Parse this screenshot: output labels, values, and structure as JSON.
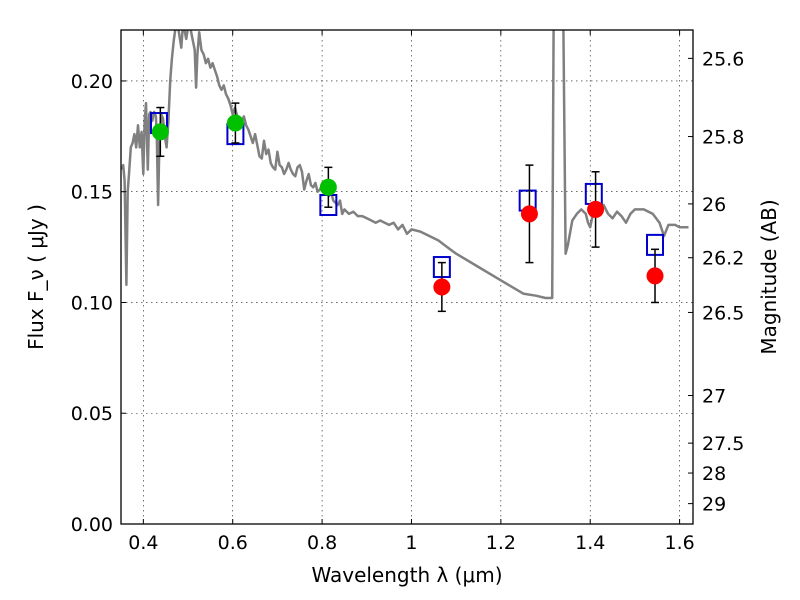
{
  "chart_data": {
    "type": "scatter",
    "xlabel": "Wavelength  λ (μm)",
    "ylabel": "Flux  F_ν  ( μJy )",
    "y2label": "Magnitude (AB)",
    "xlim": [
      0.35,
      1.63
    ],
    "ylim": [
      0.0,
      0.223
    ],
    "grid": true,
    "x_ticks": [
      {
        "value": 0.4,
        "label": "0.4"
      },
      {
        "value": 0.6,
        "label": "0.6"
      },
      {
        "value": 0.8,
        "label": "0.8"
      },
      {
        "value": 1.0,
        "label": "1"
      },
      {
        "value": 1.2,
        "label": "1.2"
      },
      {
        "value": 1.4,
        "label": "1.4"
      },
      {
        "value": 1.6,
        "label": "1.6"
      }
    ],
    "y_ticks": [
      {
        "value": 0.0,
        "label": "0.00"
      },
      {
        "value": 0.05,
        "label": "0.05"
      },
      {
        "value": 0.1,
        "label": "0.10"
      },
      {
        "value": 0.15,
        "label": "0.15"
      },
      {
        "value": 0.2,
        "label": "0.20"
      }
    ],
    "y2_ticks": [
      {
        "flux": 0.2102,
        "label": "25.6"
      },
      {
        "flux": 0.1749,
        "label": "25.8"
      },
      {
        "flux": 0.1445,
        "label": "26"
      },
      {
        "flux": 0.1202,
        "label": "26.2"
      },
      {
        "flux": 0.0955,
        "label": "26.5"
      },
      {
        "flux": 0.058,
        "label": "27"
      },
      {
        "flux": 0.0365,
        "label": "27.5"
      },
      {
        "flux": 0.023,
        "label": "28"
      },
      {
        "flux": 0.0092,
        "label": "29"
      }
    ],
    "template_spectrum": {
      "color": "#808080",
      "points": [
        [
          0.352,
          0.16
        ],
        [
          0.355,
          0.162
        ],
        [
          0.358,
          0.155
        ],
        [
          0.362,
          0.108
        ],
        [
          0.365,
          0.15
        ],
        [
          0.368,
          0.158
        ],
        [
          0.372,
          0.17
        ],
        [
          0.376,
          0.172
        ],
        [
          0.38,
          0.176
        ],
        [
          0.384,
          0.17
        ],
        [
          0.388,
          0.18
        ],
        [
          0.392,
          0.17
        ],
        [
          0.396,
          0.177
        ],
        [
          0.4,
          0.158
        ],
        [
          0.403,
          0.182
        ],
        [
          0.406,
          0.19
        ],
        [
          0.41,
          0.16
        ],
        [
          0.413,
          0.185
        ],
        [
          0.416,
          0.186
        ],
        [
          0.42,
          0.182
        ],
        [
          0.424,
          0.186
        ],
        [
          0.428,
          0.184
        ],
        [
          0.43,
          0.175
        ],
        [
          0.433,
          0.144
        ],
        [
          0.436,
          0.172
        ],
        [
          0.44,
          0.185
        ],
        [
          0.444,
          0.183
        ],
        [
          0.448,
          0.175
        ],
        [
          0.452,
          0.17
        ],
        [
          0.456,
          0.182
        ],
        [
          0.46,
          0.2
        ],
        [
          0.464,
          0.21
        ],
        [
          0.468,
          0.218
        ],
        [
          0.472,
          0.224
        ],
        [
          0.478,
          0.224
        ],
        [
          0.485,
          0.215
        ],
        [
          0.488,
          0.224
        ],
        [
          0.492,
          0.223
        ],
        [
          0.496,
          0.219
        ],
        [
          0.5,
          0.224
        ],
        [
          0.505,
          0.224
        ],
        [
          0.51,
          0.219
        ],
        [
          0.515,
          0.214
        ],
        [
          0.518,
          0.197
        ],
        [
          0.521,
          0.212
        ],
        [
          0.525,
          0.222
        ],
        [
          0.53,
          0.214
        ],
        [
          0.535,
          0.212
        ],
        [
          0.54,
          0.208
        ],
        [
          0.545,
          0.21
        ],
        [
          0.55,
          0.206
        ],
        [
          0.555,
          0.208
        ],
        [
          0.56,
          0.205
        ],
        [
          0.565,
          0.202
        ],
        [
          0.57,
          0.198
        ],
        [
          0.575,
          0.196
        ],
        [
          0.58,
          0.198
        ],
        [
          0.585,
          0.194
        ],
        [
          0.59,
          0.192
        ],
        [
          0.595,
          0.189
        ],
        [
          0.6,
          0.185
        ],
        [
          0.605,
          0.188
        ],
        [
          0.61,
          0.184
        ],
        [
          0.615,
          0.183
        ],
        [
          0.62,
          0.182
        ],
        [
          0.625,
          0.184
        ],
        [
          0.63,
          0.18
        ],
        [
          0.635,
          0.178
        ],
        [
          0.64,
          0.175
        ],
        [
          0.645,
          0.172
        ],
        [
          0.65,
          0.176
        ],
        [
          0.655,
          0.171
        ],
        [
          0.66,
          0.166
        ],
        [
          0.665,
          0.165
        ],
        [
          0.67,
          0.173
        ],
        [
          0.675,
          0.167
        ],
        [
          0.68,
          0.169
        ],
        [
          0.685,
          0.163
        ],
        [
          0.69,
          0.161
        ],
        [
          0.695,
          0.16
        ],
        [
          0.7,
          0.168
        ],
        [
          0.705,
          0.162
        ],
        [
          0.71,
          0.161
        ],
        [
          0.715,
          0.158
        ],
        [
          0.72,
          0.16
        ],
        [
          0.725,
          0.163
        ],
        [
          0.73,
          0.16
        ],
        [
          0.735,
          0.158
        ],
        [
          0.74,
          0.157
        ],
        [
          0.745,
          0.161
        ],
        [
          0.75,
          0.162
        ],
        [
          0.755,
          0.159
        ],
        [
          0.76,
          0.151
        ],
        [
          0.765,
          0.155
        ],
        [
          0.77,
          0.158
        ],
        [
          0.775,
          0.153
        ],
        [
          0.78,
          0.152
        ],
        [
          0.785,
          0.154
        ],
        [
          0.79,
          0.15
        ],
        [
          0.795,
          0.151
        ],
        [
          0.8,
          0.153
        ],
        [
          0.805,
          0.149
        ],
        [
          0.81,
          0.15
        ],
        [
          0.815,
          0.148
        ],
        [
          0.82,
          0.15
        ],
        [
          0.825,
          0.146
        ],
        [
          0.83,
          0.145
        ],
        [
          0.835,
          0.144
        ],
        [
          0.84,
          0.146
        ],
        [
          0.845,
          0.14
        ],
        [
          0.85,
          0.142
        ],
        [
          0.86,
          0.14
        ],
        [
          0.87,
          0.141
        ],
        [
          0.88,
          0.139
        ],
        [
          0.89,
          0.139
        ],
        [
          0.9,
          0.138
        ],
        [
          0.91,
          0.137
        ],
        [
          0.92,
          0.136
        ],
        [
          0.93,
          0.137
        ],
        [
          0.94,
          0.136
        ],
        [
          0.95,
          0.135
        ],
        [
          0.96,
          0.136
        ],
        [
          0.97,
          0.133
        ],
        [
          0.98,
          0.135
        ],
        [
          0.99,
          0.131
        ],
        [
          1.0,
          0.133
        ],
        [
          1.02,
          0.132
        ],
        [
          1.04,
          0.13
        ],
        [
          1.06,
          0.128
        ],
        [
          1.08,
          0.125
        ],
        [
          1.1,
          0.122
        ],
        [
          1.15,
          0.116
        ],
        [
          1.2,
          0.11
        ],
        [
          1.25,
          0.104
        ],
        [
          1.28,
          0.103
        ],
        [
          1.3,
          0.102
        ],
        [
          1.315,
          0.102
        ],
        [
          1.318,
          0.224
        ],
        [
          1.323,
          0.224
        ],
        [
          1.334,
          0.224
        ],
        [
          1.34,
          0.224
        ],
        [
          1.345,
          0.122
        ],
        [
          1.35,
          0.126
        ],
        [
          1.36,
          0.137
        ],
        [
          1.37,
          0.14
        ],
        [
          1.38,
          0.142
        ],
        [
          1.39,
          0.14
        ],
        [
          1.395,
          0.136
        ],
        [
          1.4,
          0.134
        ],
        [
          1.405,
          0.139
        ],
        [
          1.41,
          0.141
        ],
        [
          1.42,
          0.143
        ],
        [
          1.43,
          0.144
        ],
        [
          1.44,
          0.14
        ],
        [
          1.45,
          0.138
        ],
        [
          1.46,
          0.141
        ],
        [
          1.47,
          0.139
        ],
        [
          1.48,
          0.136
        ],
        [
          1.49,
          0.14
        ],
        [
          1.5,
          0.142
        ],
        [
          1.52,
          0.142
        ],
        [
          1.54,
          0.14
        ],
        [
          1.555,
          0.136
        ],
        [
          1.565,
          0.13
        ],
        [
          1.575,
          0.135
        ],
        [
          1.59,
          0.135
        ],
        [
          1.6,
          0.134
        ],
        [
          1.62,
          0.134
        ]
      ]
    },
    "series": [
      {
        "marker": "open-square",
        "color": "#0000cc",
        "points": [
          {
            "x": 0.435,
            "y": 0.181
          },
          {
            "x": 0.606,
            "y": 0.176
          },
          {
            "x": 0.814,
            "y": 0.144
          },
          {
            "x": 1.068,
            "y": 0.116
          },
          {
            "x": 1.26,
            "y": 0.146
          },
          {
            "x": 1.408,
            "y": 0.149
          },
          {
            "x": 1.545,
            "y": 0.126
          }
        ]
      },
      {
        "marker": "filled-circle",
        "color": "#00c000",
        "points": [
          {
            "x": 0.438,
            "y": 0.177,
            "err": 0.011
          },
          {
            "x": 0.606,
            "y": 0.181,
            "err": 0.009
          },
          {
            "x": 0.814,
            "y": 0.152,
            "err": 0.009
          }
        ]
      },
      {
        "marker": "filled-circle",
        "color": "#ff0000",
        "points": [
          {
            "x": 1.068,
            "y": 0.107,
            "err": 0.011
          },
          {
            "x": 1.264,
            "y": 0.14,
            "err": 0.022
          },
          {
            "x": 1.412,
            "y": 0.142,
            "err": 0.017
          },
          {
            "x": 1.545,
            "y": 0.112,
            "err": 0.012
          }
        ]
      }
    ]
  }
}
